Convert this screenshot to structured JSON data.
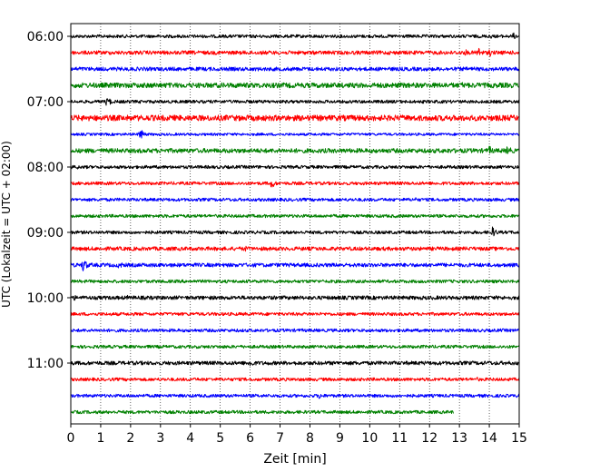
{
  "chart_data": {
    "type": "line",
    "xlabel": "Zeit  [min]",
    "ylabel": "UTC (Lokalzeit = UTC + 02:00)",
    "xlim": [
      0,
      15
    ],
    "x_ticks": [
      "0",
      "1",
      "2",
      "3",
      "4",
      "5",
      "6",
      "7",
      "8",
      "9",
      "10",
      "11",
      "12",
      "13",
      "14",
      "15"
    ],
    "y_tick_labels": [
      "06:00",
      "07:00",
      "08:00",
      "09:00",
      "10:00",
      "11:00"
    ],
    "y_tick_rows": [
      0,
      4,
      8,
      12,
      16,
      20
    ],
    "vertical_grid": true,
    "grid_style": "dotted",
    "row_colors": [
      "#000000",
      "#ff0000",
      "#0000ff",
      "#008000"
    ],
    "rows": [
      {
        "start": "06:00",
        "color": "black",
        "amplitude": 0.25,
        "end_min": 15,
        "events": [
          {
            "t": 14.0,
            "a": 0.5
          },
          {
            "t": 14.8,
            "a": 0.6
          }
        ]
      },
      {
        "start": "06:15",
        "color": "red",
        "amplitude": 0.3,
        "end_min": 15,
        "events": [
          {
            "t": 4.0,
            "a": 0.35
          },
          {
            "t": 13.2,
            "a": 0.55
          },
          {
            "t": 13.6,
            "a": 1.1
          },
          {
            "t": 14.0,
            "a": 0.7
          }
        ]
      },
      {
        "start": "06:30",
        "color": "blue",
        "amplitude": 0.3,
        "end_min": 15,
        "events": [
          {
            "t": 0.3,
            "a": 0.45
          }
        ]
      },
      {
        "start": "06:45",
        "color": "green",
        "amplitude": 0.4,
        "end_min": 15,
        "events": [
          {
            "t": 5.2,
            "a": 0.45
          },
          {
            "t": 6.5,
            "a": 0.4
          },
          {
            "t": 13.1,
            "a": 0.5
          }
        ]
      },
      {
        "start": "07:00",
        "color": "black",
        "amplitude": 0.25,
        "end_min": 15,
        "events": [
          {
            "t": 1.2,
            "a": 0.9
          }
        ]
      },
      {
        "start": "07:15",
        "color": "red",
        "amplitude": 0.45,
        "end_min": 15,
        "events": [
          {
            "t": 0.9,
            "a": 0.55
          },
          {
            "t": 3.1,
            "a": 0.5
          },
          {
            "t": 4.1,
            "a": 0.45
          }
        ]
      },
      {
        "start": "07:30",
        "color": "blue",
        "amplitude": 0.2,
        "end_min": 15,
        "events": [
          {
            "t": 2.3,
            "a": 1.0
          }
        ]
      },
      {
        "start": "07:45",
        "color": "green",
        "amplitude": 0.35,
        "end_min": 15,
        "events": [
          {
            "t": 9.3,
            "a": 0.35
          },
          {
            "t": 12.6,
            "a": 0.5
          },
          {
            "t": 14.0,
            "a": 0.8
          },
          {
            "t": 14.6,
            "a": 0.9
          }
        ]
      },
      {
        "start": "08:00",
        "color": "black",
        "amplitude": 0.25,
        "end_min": 15,
        "events": [
          {
            "t": 0.2,
            "a": 0.4
          },
          {
            "t": 2.0,
            "a": 0.45
          }
        ]
      },
      {
        "start": "08:15",
        "color": "red",
        "amplitude": 0.25,
        "end_min": 15,
        "events": [
          {
            "t": 6.7,
            "a": 0.85
          }
        ]
      },
      {
        "start": "08:30",
        "color": "blue",
        "amplitude": 0.25,
        "end_min": 15,
        "events": [
          {
            "t": 11.5,
            "a": 0.45
          }
        ]
      },
      {
        "start": "08:45",
        "color": "green",
        "amplitude": 0.25,
        "end_min": 15,
        "events": []
      },
      {
        "start": "09:00",
        "color": "black",
        "amplitude": 0.25,
        "end_min": 15,
        "events": [
          {
            "t": 14.1,
            "a": 0.9
          }
        ]
      },
      {
        "start": "09:15",
        "color": "red",
        "amplitude": 0.3,
        "end_min": 15,
        "events": [
          {
            "t": 5.8,
            "a": 0.6
          }
        ]
      },
      {
        "start": "09:30",
        "color": "blue",
        "amplitude": 0.3,
        "end_min": 15,
        "events": [
          {
            "t": 0.4,
            "a": 1.2
          },
          {
            "t": 1.6,
            "a": 0.7
          },
          {
            "t": 10.0,
            "a": 0.4
          }
        ]
      },
      {
        "start": "09:45",
        "color": "green",
        "amplitude": 0.25,
        "end_min": 15,
        "events": []
      },
      {
        "start": "10:00",
        "color": "black",
        "amplitude": 0.3,
        "end_min": 15,
        "events": [
          {
            "t": 0.1,
            "a": 0.5
          },
          {
            "t": 1.9,
            "a": 0.4
          }
        ]
      },
      {
        "start": "10:15",
        "color": "red",
        "amplitude": 0.25,
        "end_min": 15,
        "events": []
      },
      {
        "start": "10:30",
        "color": "blue",
        "amplitude": 0.25,
        "end_min": 15,
        "events": []
      },
      {
        "start": "10:45",
        "color": "green",
        "amplitude": 0.25,
        "end_min": 15,
        "events": []
      },
      {
        "start": "11:00",
        "color": "black",
        "amplitude": 0.3,
        "end_min": 15,
        "events": [
          {
            "t": 6.0,
            "a": 0.8
          },
          {
            "t": 14.0,
            "a": 0.4
          }
        ]
      },
      {
        "start": "11:15",
        "color": "red",
        "amplitude": 0.25,
        "end_min": 15,
        "events": [
          {
            "t": 13.6,
            "a": 0.4
          }
        ]
      },
      {
        "start": "11:30",
        "color": "blue",
        "amplitude": 0.25,
        "end_min": 15,
        "events": [
          {
            "t": 8.3,
            "a": 0.6
          }
        ]
      },
      {
        "start": "11:45",
        "color": "green",
        "amplitude": 0.25,
        "end_min": 12.8,
        "events": []
      }
    ]
  }
}
